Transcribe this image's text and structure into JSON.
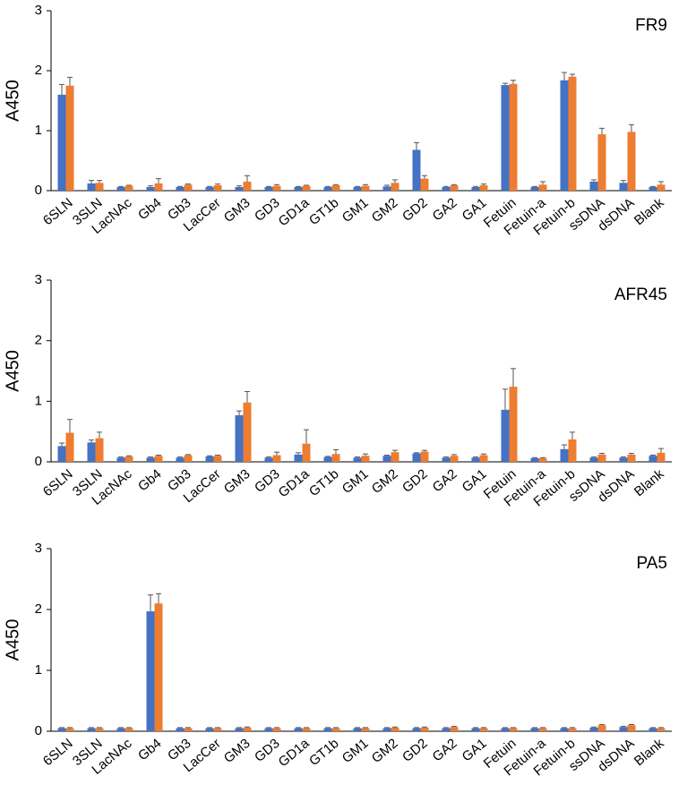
{
  "chart_data": [
    {
      "type": "bar",
      "title": "FR9",
      "ylabel": "A450",
      "categories": [
        "6SLN",
        "3SLN",
        "LacNAc",
        "Gb4",
        "Gb3",
        "LacCer",
        "GM3",
        "GD3",
        "GD1a",
        "GT1b",
        "GM1",
        "GM2",
        "GD2",
        "GA2",
        "GA1",
        "Fetuin",
        "Fetuin-a",
        "Fetuin-b",
        "ssDNA",
        "dsDNA",
        "Blank"
      ],
      "series": [
        {
          "color": "#4472c4",
          "values": [
            1.6,
            0.12,
            0.06,
            0.06,
            0.06,
            0.06,
            0.06,
            0.06,
            0.06,
            0.06,
            0.06,
            0.07,
            0.68,
            0.06,
            0.06,
            1.76,
            0.06,
            1.84,
            0.15,
            0.13,
            0.06
          ],
          "errors": [
            0.17,
            0.05,
            0.01,
            0.02,
            0.01,
            0.01,
            0.02,
            0.01,
            0.01,
            0.01,
            0.01,
            0.02,
            0.12,
            0.01,
            0.01,
            0.03,
            0.01,
            0.13,
            0.03,
            0.04,
            0.01
          ]
        },
        {
          "color": "#ed7d31",
          "values": [
            1.75,
            0.13,
            0.08,
            0.12,
            0.1,
            0.09,
            0.15,
            0.08,
            0.08,
            0.09,
            0.08,
            0.13,
            0.2,
            0.09,
            0.09,
            1.78,
            0.1,
            1.9,
            0.94,
            0.98,
            0.1
          ],
          "errors": [
            0.14,
            0.04,
            0.01,
            0.08,
            0.01,
            0.02,
            0.1,
            0.02,
            0.01,
            0.01,
            0.02,
            0.05,
            0.05,
            0.01,
            0.02,
            0.06,
            0.05,
            0.04,
            0.1,
            0.12,
            0.05
          ]
        }
      ],
      "ylim": [
        0,
        3
      ],
      "yticks": [
        0,
        1,
        2,
        3
      ],
      "grid": false
    },
    {
      "type": "bar",
      "title": "AFR45",
      "ylabel": "A450",
      "categories": [
        "6SLN",
        "3SLN",
        "LacNAc",
        "Gb4",
        "Gb3",
        "LacCer",
        "GM3",
        "GD3",
        "GD1a",
        "GT1b",
        "GM1",
        "GM2",
        "GD2",
        "GA2",
        "GA1",
        "Fetuin",
        "Fetuin-a",
        "Fetuin-b",
        "ssDNA",
        "dsDNA",
        "Blank"
      ],
      "series": [
        {
          "color": "#4472c4",
          "values": [
            0.26,
            0.32,
            0.07,
            0.07,
            0.07,
            0.09,
            0.77,
            0.07,
            0.12,
            0.08,
            0.07,
            0.1,
            0.14,
            0.07,
            0.07,
            0.86,
            0.06,
            0.21,
            0.07,
            0.07,
            0.1
          ],
          "errors": [
            0.05,
            0.04,
            0.01,
            0.01,
            0.01,
            0.01,
            0.07,
            0.01,
            0.03,
            0.01,
            0.01,
            0.01,
            0.01,
            0.01,
            0.01,
            0.34,
            0.01,
            0.07,
            0.01,
            0.01,
            0.01
          ]
        },
        {
          "color": "#ed7d31",
          "values": [
            0.48,
            0.39,
            0.09,
            0.1,
            0.11,
            0.1,
            0.98,
            0.11,
            0.3,
            0.13,
            0.1,
            0.16,
            0.17,
            0.1,
            0.11,
            1.24,
            0.06,
            0.37,
            0.12,
            0.12,
            0.15
          ],
          "errors": [
            0.22,
            0.1,
            0.01,
            0.01,
            0.01,
            0.01,
            0.18,
            0.05,
            0.23,
            0.07,
            0.03,
            0.03,
            0.02,
            0.02,
            0.02,
            0.3,
            0.01,
            0.12,
            0.02,
            0.02,
            0.07
          ]
        }
      ],
      "ylim": [
        0,
        3
      ],
      "yticks": [
        0,
        1,
        2,
        3
      ],
      "grid": false
    },
    {
      "type": "bar",
      "title": "PA5",
      "ylabel": "A450",
      "categories": [
        "6SLN",
        "3SLN",
        "LacNAc",
        "Gb4",
        "Gb3",
        "LacCer",
        "GM3",
        "GD3",
        "GD1a",
        "GT1b",
        "GM1",
        "GM2",
        "GD2",
        "GA2",
        "GA1",
        "Fetuin",
        "Fetuin-a",
        "Fetuin-b",
        "ssDNA",
        "dsDNA",
        "Blank"
      ],
      "series": [
        {
          "color": "#4472c4",
          "values": [
            0.05,
            0.05,
            0.05,
            1.97,
            0.05,
            0.05,
            0.05,
            0.05,
            0.05,
            0.05,
            0.05,
            0.05,
            0.05,
            0.05,
            0.05,
            0.05,
            0.05,
            0.05,
            0.06,
            0.07,
            0.05
          ],
          "errors": [
            0.01,
            0.01,
            0.01,
            0.27,
            0.01,
            0.01,
            0.01,
            0.01,
            0.01,
            0.01,
            0.01,
            0.01,
            0.01,
            0.01,
            0.01,
            0.01,
            0.01,
            0.01,
            0.01,
            0.01,
            0.01
          ]
        },
        {
          "color": "#ed7d31",
          "values": [
            0.05,
            0.05,
            0.05,
            2.1,
            0.05,
            0.05,
            0.06,
            0.05,
            0.05,
            0.05,
            0.05,
            0.06,
            0.06,
            0.07,
            0.05,
            0.05,
            0.05,
            0.05,
            0.1,
            0.1,
            0.05
          ],
          "errors": [
            0.01,
            0.01,
            0.01,
            0.16,
            0.01,
            0.01,
            0.01,
            0.01,
            0.01,
            0.01,
            0.01,
            0.01,
            0.01,
            0.01,
            0.01,
            0.01,
            0.01,
            0.01,
            0.01,
            0.01,
            0.01
          ]
        }
      ],
      "ylim": [
        0,
        3
      ],
      "yticks": [
        0,
        1,
        2,
        3
      ],
      "grid": false
    }
  ]
}
